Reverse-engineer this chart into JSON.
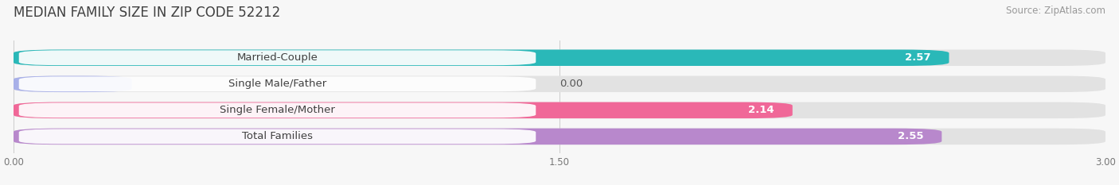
{
  "title": "MEDIAN FAMILY SIZE IN ZIP CODE 52212",
  "source": "Source: ZipAtlas.com",
  "categories": [
    "Married-Couple",
    "Single Male/Father",
    "Single Female/Mother",
    "Total Families"
  ],
  "values": [
    2.57,
    0.0,
    2.14,
    2.55
  ],
  "bar_colors": [
    "#2ab8b8",
    "#a8b0e8",
    "#f06898",
    "#b888cc"
  ],
  "xlim_max": 3.0,
  "xticks": [
    0.0,
    1.5,
    3.0
  ],
  "xtick_labels": [
    "0.00",
    "1.50",
    "3.00"
  ],
  "bar_height": 0.62,
  "background_color": "#f7f7f7",
  "bg_bar_color": "#e2e2e2",
  "title_fontsize": 12,
  "source_fontsize": 8.5,
  "label_fontsize": 9.5,
  "value_fontsize": 9.5
}
